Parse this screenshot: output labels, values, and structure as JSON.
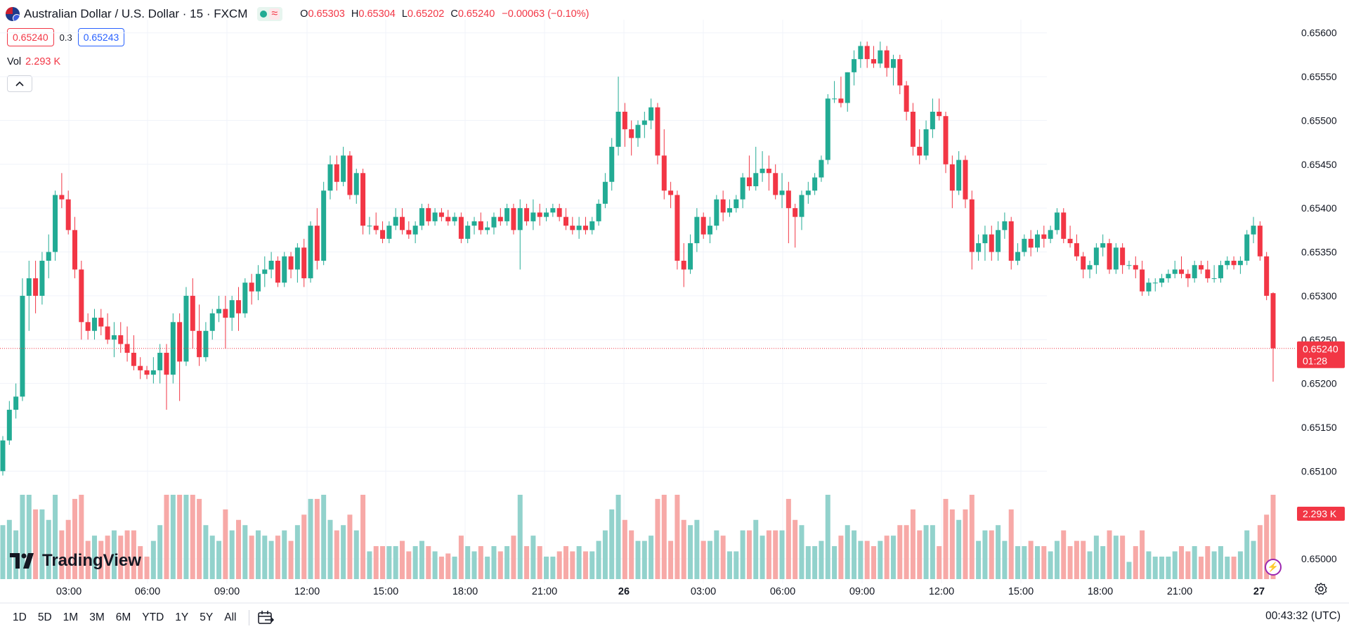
{
  "header": {
    "symbol_title": "Australian Dollar / U.S. Dollar · 15 · FXCM",
    "ohlc": {
      "o_label": "O",
      "o_value": "0.65303",
      "h_label": "H",
      "h_value": "0.65304",
      "l_label": "L",
      "l_value": "0.65202",
      "c_label": "C",
      "c_value": "0.65240",
      "change": "−0.00063 (−0.10%)"
    }
  },
  "trade": {
    "sell_price": "0.65240",
    "spread": "0.3",
    "buy_price": "0.65243"
  },
  "volume_legend": {
    "label": "Vol",
    "value": "2.293 K"
  },
  "price_axis": {
    "ticks": [
      "0.65600",
      "0.65550",
      "0.65500",
      "0.65450",
      "0.65400",
      "0.65350",
      "0.65300",
      "0.65250",
      "0.65200",
      "0.65150",
      "0.65100",
      "0.65000"
    ],
    "current_price": "0.65240",
    "countdown": "01:28",
    "volume_badge": "2.293 K"
  },
  "time_axis": {
    "ticks": [
      "03:00",
      "06:00",
      "09:00",
      "12:00",
      "15:00",
      "18:00",
      "21:00",
      "26",
      "03:00",
      "06:00",
      "09:00",
      "12:00",
      "15:00",
      "18:00",
      "21:00",
      "27"
    ]
  },
  "ranges": [
    "1D",
    "5D",
    "1M",
    "3M",
    "6M",
    "YTD",
    "1Y",
    "5Y",
    "All"
  ],
  "clock": "00:43:32 (UTC)",
  "logo_text": "TradingView",
  "colors": {
    "up": "#22ab94",
    "down": "#f23645",
    "up_volume": "#92d2cc",
    "down_volume": "#f7a9a7"
  },
  "chart_data": {
    "type": "candlestick",
    "interval": "15",
    "symbol": "AUDUSD",
    "ylim": [
      0.64972,
      0.65615
    ],
    "candles": [
      [
        0.651,
        0.6514,
        0.65095,
        0.65135
      ],
      [
        0.65135,
        0.6518,
        0.6513,
        0.6517
      ],
      [
        0.6517,
        0.652,
        0.6516,
        0.65185
      ],
      [
        0.65185,
        0.6532,
        0.6518,
        0.653
      ],
      [
        0.653,
        0.6534,
        0.6526,
        0.6532
      ],
      [
        0.6532,
        0.6534,
        0.6528,
        0.653
      ],
      [
        0.653,
        0.6535,
        0.6529,
        0.6534
      ],
      [
        0.6534,
        0.6537,
        0.6532,
        0.6535
      ],
      [
        0.6535,
        0.6542,
        0.6534,
        0.65415
      ],
      [
        0.65415,
        0.6544,
        0.654,
        0.6541
      ],
      [
        0.6541,
        0.6542,
        0.6537,
        0.65375
      ],
      [
        0.65375,
        0.6539,
        0.6532,
        0.6533
      ],
      [
        0.6533,
        0.6534,
        0.6525,
        0.6527
      ],
      [
        0.6527,
        0.6528,
        0.6525,
        0.6526
      ],
      [
        0.6526,
        0.65285,
        0.6525,
        0.65275
      ],
      [
        0.65275,
        0.65285,
        0.65255,
        0.65265
      ],
      [
        0.65265,
        0.6528,
        0.65245,
        0.6525
      ],
      [
        0.6525,
        0.6527,
        0.6523,
        0.65255
      ],
      [
        0.65255,
        0.6527,
        0.65235,
        0.65245
      ],
      [
        0.65245,
        0.65265,
        0.65225,
        0.65235
      ],
      [
        0.65235,
        0.65255,
        0.65215,
        0.6522
      ],
      [
        0.6522,
        0.6523,
        0.65205,
        0.65215
      ],
      [
        0.65215,
        0.6522,
        0.65205,
        0.6521
      ],
      [
        0.6521,
        0.6523,
        0.652,
        0.65215
      ],
      [
        0.65215,
        0.65245,
        0.652,
        0.65235
      ],
      [
        0.65235,
        0.65245,
        0.6517,
        0.6521
      ],
      [
        0.6521,
        0.6528,
        0.652,
        0.6527
      ],
      [
        0.6527,
        0.6528,
        0.6518,
        0.65225
      ],
      [
        0.65225,
        0.6531,
        0.6522,
        0.653
      ],
      [
        0.653,
        0.6532,
        0.6524,
        0.6526
      ],
      [
        0.6526,
        0.6529,
        0.6522,
        0.6523
      ],
      [
        0.6523,
        0.6527,
        0.65225,
        0.6526
      ],
      [
        0.6526,
        0.65285,
        0.6525,
        0.6528
      ],
      [
        0.6528,
        0.653,
        0.6527,
        0.65285
      ],
      [
        0.65285,
        0.653,
        0.6524,
        0.65275
      ],
      [
        0.65275,
        0.653,
        0.6526,
        0.65295
      ],
      [
        0.65295,
        0.6531,
        0.6526,
        0.6528
      ],
      [
        0.6528,
        0.6532,
        0.65275,
        0.65315
      ],
      [
        0.65315,
        0.65325,
        0.6529,
        0.65305
      ],
      [
        0.65305,
        0.65335,
        0.65295,
        0.65325
      ],
      [
        0.65325,
        0.65345,
        0.6531,
        0.6533
      ],
      [
        0.6533,
        0.6535,
        0.6532,
        0.6534
      ],
      [
        0.6534,
        0.65345,
        0.6531,
        0.65315
      ],
      [
        0.65315,
        0.6535,
        0.6531,
        0.65345
      ],
      [
        0.65345,
        0.6535,
        0.6532,
        0.6533
      ],
      [
        0.6533,
        0.6536,
        0.65315,
        0.65355
      ],
      [
        0.65355,
        0.65365,
        0.6531,
        0.6532
      ],
      [
        0.6532,
        0.65385,
        0.65315,
        0.6538
      ],
      [
        0.6538,
        0.654,
        0.6533,
        0.6534
      ],
      [
        0.6534,
        0.6543,
        0.65335,
        0.6542
      ],
      [
        0.6542,
        0.6546,
        0.6541,
        0.6545
      ],
      [
        0.6545,
        0.6546,
        0.6542,
        0.6543
      ],
      [
        0.6543,
        0.6547,
        0.65425,
        0.6546
      ],
      [
        0.6546,
        0.65465,
        0.6541,
        0.65415
      ],
      [
        0.65415,
        0.65445,
        0.65405,
        0.6544
      ],
      [
        0.6544,
        0.65445,
        0.6537,
        0.6538
      ],
      [
        0.6538,
        0.6539,
        0.6537,
        0.6538
      ],
      [
        0.6538,
        0.65395,
        0.6537,
        0.65375
      ],
      [
        0.65375,
        0.65385,
        0.6536,
        0.65365
      ],
      [
        0.65365,
        0.65385,
        0.6536,
        0.6538
      ],
      [
        0.6538,
        0.654,
        0.65375,
        0.6539
      ],
      [
        0.6539,
        0.654,
        0.6537,
        0.65375
      ],
      [
        0.65375,
        0.65385,
        0.65365,
        0.6537
      ],
      [
        0.6537,
        0.65385,
        0.6536,
        0.6538
      ],
      [
        0.6538,
        0.65405,
        0.65375,
        0.654
      ],
      [
        0.654,
        0.65405,
        0.6538,
        0.65385
      ],
      [
        0.65385,
        0.654,
        0.6538,
        0.65395
      ],
      [
        0.65395,
        0.654,
        0.65385,
        0.6539
      ],
      [
        0.6539,
        0.65398,
        0.6538,
        0.65385
      ],
      [
        0.65385,
        0.65395,
        0.6538,
        0.6539
      ],
      [
        0.6539,
        0.65395,
        0.6536,
        0.65365
      ],
      [
        0.65365,
        0.65385,
        0.6536,
        0.6538
      ],
      [
        0.6538,
        0.6539,
        0.6537,
        0.65385
      ],
      [
        0.65385,
        0.65395,
        0.6537,
        0.65375
      ],
      [
        0.65375,
        0.65385,
        0.6537,
        0.65378
      ],
      [
        0.65378,
        0.65395,
        0.6537,
        0.6539
      ],
      [
        0.6539,
        0.654,
        0.6538,
        0.65385
      ],
      [
        0.65385,
        0.65405,
        0.6538,
        0.654
      ],
      [
        0.654,
        0.65405,
        0.6537,
        0.65375
      ],
      [
        0.65375,
        0.6541,
        0.6533,
        0.654
      ],
      [
        0.654,
        0.65405,
        0.6538,
        0.65385
      ],
      [
        0.65385,
        0.6541,
        0.65375,
        0.65395
      ],
      [
        0.65395,
        0.65405,
        0.6538,
        0.6539
      ],
      [
        0.6539,
        0.654,
        0.65385,
        0.65395
      ],
      [
        0.65395,
        0.65405,
        0.6539,
        0.654
      ],
      [
        0.654,
        0.65405,
        0.65385,
        0.6539
      ],
      [
        0.6539,
        0.654,
        0.65375,
        0.6538
      ],
      [
        0.6538,
        0.6539,
        0.6537,
        0.65375
      ],
      [
        0.65375,
        0.6539,
        0.65365,
        0.6538
      ],
      [
        0.6538,
        0.6539,
        0.6537,
        0.65375
      ],
      [
        0.65375,
        0.6539,
        0.6537,
        0.65385
      ],
      [
        0.65385,
        0.6541,
        0.6538,
        0.65405
      ],
      [
        0.65405,
        0.6544,
        0.654,
        0.6543
      ],
      [
        0.6543,
        0.6548,
        0.6542,
        0.6547
      ],
      [
        0.6547,
        0.6555,
        0.6546,
        0.6551
      ],
      [
        0.6551,
        0.6552,
        0.6547,
        0.6549
      ],
      [
        0.6549,
        0.655,
        0.6546,
        0.6548
      ],
      [
        0.6548,
        0.655,
        0.6547,
        0.65495
      ],
      [
        0.65495,
        0.6551,
        0.6548,
        0.655
      ],
      [
        0.655,
        0.65525,
        0.6549,
        0.65515
      ],
      [
        0.65515,
        0.6552,
        0.6545,
        0.6546
      ],
      [
        0.6546,
        0.6549,
        0.6541,
        0.6542
      ],
      [
        0.6542,
        0.6543,
        0.654,
        0.65415
      ],
      [
        0.65415,
        0.6542,
        0.6533,
        0.6534
      ],
      [
        0.6534,
        0.6536,
        0.6531,
        0.6533
      ],
      [
        0.6533,
        0.6537,
        0.65325,
        0.6536
      ],
      [
        0.6536,
        0.654,
        0.6535,
        0.6539
      ],
      [
        0.6539,
        0.65395,
        0.65365,
        0.6537
      ],
      [
        0.6537,
        0.6539,
        0.6536,
        0.6538
      ],
      [
        0.6538,
        0.65415,
        0.65375,
        0.6541
      ],
      [
        0.6541,
        0.6542,
        0.65385,
        0.65395
      ],
      [
        0.65395,
        0.6541,
        0.6539,
        0.654
      ],
      [
        0.654,
        0.65415,
        0.65395,
        0.6541
      ],
      [
        0.6541,
        0.6544,
        0.654,
        0.65435
      ],
      [
        0.65435,
        0.6546,
        0.6542,
        0.65425
      ],
      [
        0.65425,
        0.6547,
        0.6542,
        0.6544
      ],
      [
        0.6544,
        0.65465,
        0.6543,
        0.65445
      ],
      [
        0.65445,
        0.6546,
        0.6542,
        0.6544
      ],
      [
        0.6544,
        0.6545,
        0.6541,
        0.65415
      ],
      [
        0.65415,
        0.6544,
        0.654,
        0.6542
      ],
      [
        0.6542,
        0.6543,
        0.6536,
        0.654
      ],
      [
        0.654,
        0.65405,
        0.65355,
        0.6539
      ],
      [
        0.6539,
        0.6542,
        0.65375,
        0.65415
      ],
      [
        0.65415,
        0.6543,
        0.65405,
        0.6542
      ],
      [
        0.6542,
        0.6544,
        0.65415,
        0.65435
      ],
      [
        0.65435,
        0.6546,
        0.6543,
        0.65455
      ],
      [
        0.65455,
        0.6553,
        0.6545,
        0.65525
      ],
      [
        0.65525,
        0.65545,
        0.6552,
        0.65525
      ],
      [
        0.65525,
        0.6555,
        0.65515,
        0.6552
      ],
      [
        0.6552,
        0.65555,
        0.6551,
        0.65555
      ],
      [
        0.65555,
        0.6558,
        0.6554,
        0.6557
      ],
      [
        0.6557,
        0.6559,
        0.6556,
        0.65585
      ],
      [
        0.65585,
        0.6559,
        0.6556,
        0.6557
      ],
      [
        0.6557,
        0.65585,
        0.6556,
        0.65565
      ],
      [
        0.65565,
        0.6559,
        0.6556,
        0.6558
      ],
      [
        0.6558,
        0.65585,
        0.6555,
        0.6556
      ],
      [
        0.6556,
        0.65575,
        0.6554,
        0.6557
      ],
      [
        0.6557,
        0.65575,
        0.6553,
        0.6554
      ],
      [
        0.6554,
        0.65545,
        0.655,
        0.6551
      ],
      [
        0.6551,
        0.6552,
        0.6546,
        0.6547
      ],
      [
        0.6547,
        0.6549,
        0.6545,
        0.6546
      ],
      [
        0.6546,
        0.655,
        0.65455,
        0.6549
      ],
      [
        0.6549,
        0.65525,
        0.6548,
        0.6551
      ],
      [
        0.6551,
        0.65525,
        0.655,
        0.65505
      ],
      [
        0.65505,
        0.6551,
        0.6544,
        0.6545
      ],
      [
        0.6545,
        0.6546,
        0.654,
        0.6542
      ],
      [
        0.6542,
        0.65465,
        0.65415,
        0.65455
      ],
      [
        0.65455,
        0.6546,
        0.654,
        0.6541
      ],
      [
        0.6541,
        0.6542,
        0.6533,
        0.6535
      ],
      [
        0.6535,
        0.6537,
        0.6534,
        0.6536
      ],
      [
        0.6536,
        0.6538,
        0.6534,
        0.6537
      ],
      [
        0.6537,
        0.6538,
        0.6534,
        0.6535
      ],
      [
        0.6535,
        0.65385,
        0.6534,
        0.65375
      ],
      [
        0.65375,
        0.65395,
        0.65365,
        0.65385
      ],
      [
        0.65385,
        0.6539,
        0.6533,
        0.6534
      ],
      [
        0.6534,
        0.6536,
        0.65335,
        0.6535
      ],
      [
        0.6535,
        0.6537,
        0.65345,
        0.65365
      ],
      [
        0.65365,
        0.65375,
        0.65345,
        0.65355
      ],
      [
        0.65355,
        0.65375,
        0.6535,
        0.6537
      ],
      [
        0.6537,
        0.6538,
        0.65355,
        0.65365
      ],
      [
        0.65365,
        0.6538,
        0.6536,
        0.65375
      ],
      [
        0.65375,
        0.654,
        0.6537,
        0.65395
      ],
      [
        0.65395,
        0.654,
        0.6536,
        0.65365
      ],
      [
        0.65365,
        0.6538,
        0.65355,
        0.6536
      ],
      [
        0.6536,
        0.6537,
        0.6534,
        0.65345
      ],
      [
        0.65345,
        0.6535,
        0.6532,
        0.6533
      ],
      [
        0.6533,
        0.6534,
        0.6532,
        0.65335
      ],
      [
        0.65335,
        0.6536,
        0.65325,
        0.65355
      ],
      [
        0.65355,
        0.6537,
        0.65345,
        0.6536
      ],
      [
        0.6536,
        0.65365,
        0.65325,
        0.6533
      ],
      [
        0.6533,
        0.6536,
        0.65325,
        0.65355
      ],
      [
        0.65355,
        0.6536,
        0.65325,
        0.65335
      ],
      [
        0.65335,
        0.6534,
        0.6533,
        0.65335
      ],
      [
        0.65335,
        0.65345,
        0.6532,
        0.6533
      ],
      [
        0.6533,
        0.6534,
        0.653,
        0.65305
      ],
      [
        0.65305,
        0.6532,
        0.653,
        0.65315
      ],
      [
        0.65315,
        0.6532,
        0.65305,
        0.65315
      ],
      [
        0.65315,
        0.65325,
        0.6531,
        0.6532
      ],
      [
        0.6532,
        0.6533,
        0.65315,
        0.65325
      ],
      [
        0.65325,
        0.6534,
        0.6532,
        0.6533
      ],
      [
        0.6533,
        0.65345,
        0.6532,
        0.65325
      ],
      [
        0.65325,
        0.6533,
        0.6531,
        0.6532
      ],
      [
        0.6532,
        0.6534,
        0.65315,
        0.65335
      ],
      [
        0.65335,
        0.6534,
        0.65325,
        0.6533
      ],
      [
        0.6533,
        0.6534,
        0.65315,
        0.6532
      ],
      [
        0.6532,
        0.65335,
        0.65315,
        0.6532
      ],
      [
        0.6532,
        0.6534,
        0.65315,
        0.65335
      ],
      [
        0.65335,
        0.65345,
        0.6533,
        0.6534
      ],
      [
        0.6534,
        0.65345,
        0.6533,
        0.65335
      ],
      [
        0.65335,
        0.65345,
        0.65325,
        0.6534
      ],
      [
        0.6534,
        0.65375,
        0.65335,
        0.6537
      ],
      [
        0.6537,
        0.6539,
        0.6536,
        0.6538
      ],
      [
        0.6538,
        0.65385,
        0.6534,
        0.65345
      ],
      [
        0.65345,
        0.6535,
        0.65295,
        0.653
      ],
      [
        0.65303,
        0.65304,
        0.65202,
        0.6524
      ]
    ],
    "volume_max": 0.5
  }
}
